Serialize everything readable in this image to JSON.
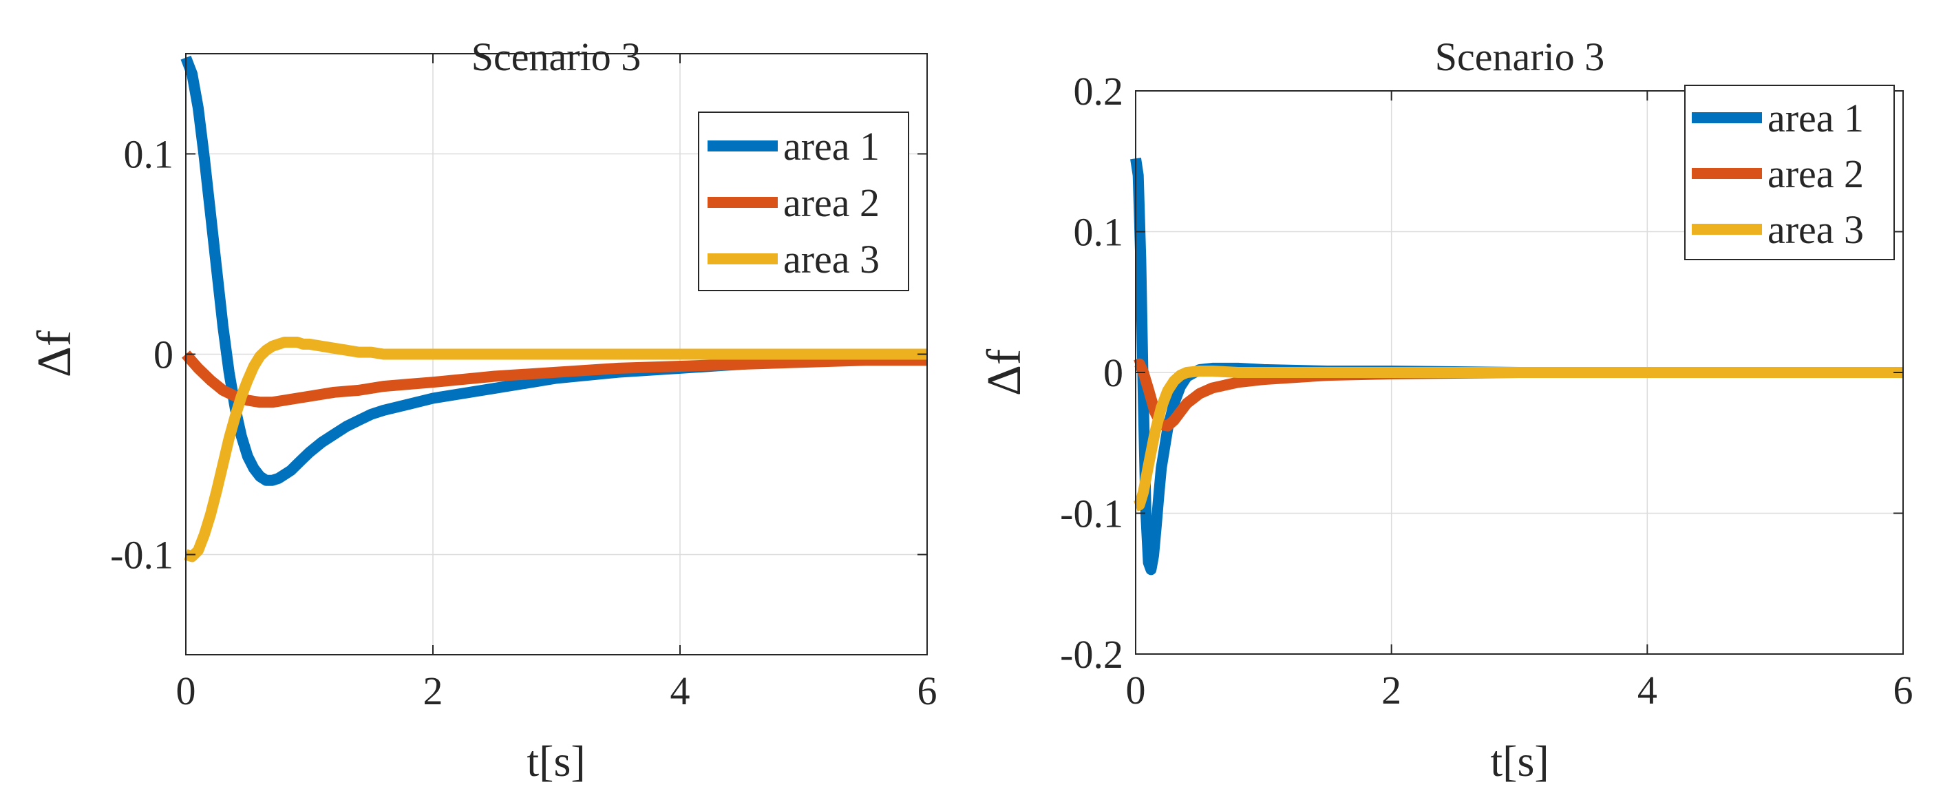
{
  "chart_data": [
    {
      "type": "line",
      "title": "Scenario 3",
      "xlabel": "t[s]",
      "ylabel": "Δf",
      "xlim": [
        0,
        6
      ],
      "ylim": [
        -0.15,
        0.15
      ],
      "xticks": [
        0,
        2,
        4,
        6
      ],
      "xtick_labels": [
        "0",
        "2",
        "4",
        "6"
      ],
      "yticks": [
        -0.1,
        0,
        0.1
      ],
      "ytick_labels": [
        "-0.1",
        "0",
        "0.1"
      ],
      "grid": true,
      "legend_position": "top-right",
      "series": [
        {
          "name": "area 1",
          "color": "#0072BD",
          "x": [
            0,
            0.05,
            0.1,
            0.15,
            0.2,
            0.25,
            0.3,
            0.35,
            0.4,
            0.45,
            0.5,
            0.55,
            0.6,
            0.65,
            0.7,
            0.75,
            0.8,
            0.85,
            0.9,
            0.95,
            1.0,
            1.1,
            1.2,
            1.3,
            1.4,
            1.5,
            1.6,
            1.8,
            2.0,
            2.5,
            3.0,
            3.5,
            4.0,
            4.5,
            5.0,
            5.5,
            6.0
          ],
          "values": [
            0.148,
            0.14,
            0.123,
            0.098,
            0.07,
            0.042,
            0.014,
            -0.009,
            -0.027,
            -0.041,
            -0.051,
            -0.057,
            -0.061,
            -0.063,
            -0.063,
            -0.062,
            -0.06,
            -0.058,
            -0.055,
            -0.052,
            -0.049,
            -0.044,
            -0.04,
            -0.036,
            -0.033,
            -0.03,
            -0.028,
            -0.025,
            -0.022,
            -0.017,
            -0.012,
            -0.009,
            -0.007,
            -0.005,
            -0.003,
            -0.002,
            -0.001
          ]
        },
        {
          "name": "area 2",
          "color": "#D95319",
          "x": [
            0,
            0.1,
            0.2,
            0.3,
            0.4,
            0.5,
            0.6,
            0.7,
            0.8,
            0.9,
            1.0,
            1.2,
            1.4,
            1.6,
            1.8,
            2.0,
            2.5,
            3.0,
            3.5,
            4.0,
            4.5,
            5.0,
            5.5,
            6.0
          ],
          "values": [
            0,
            -0.007,
            -0.013,
            -0.018,
            -0.021,
            -0.023,
            -0.024,
            -0.024,
            -0.023,
            -0.022,
            -0.021,
            -0.019,
            -0.018,
            -0.016,
            -0.015,
            -0.014,
            -0.011,
            -0.009,
            -0.007,
            -0.006,
            -0.005,
            -0.004,
            -0.003,
            -0.003
          ]
        },
        {
          "name": "area 3",
          "color": "#EDB120",
          "x": [
            0,
            0.05,
            0.1,
            0.15,
            0.2,
            0.25,
            0.3,
            0.35,
            0.4,
            0.45,
            0.5,
            0.55,
            0.6,
            0.65,
            0.7,
            0.75,
            0.8,
            0.85,
            0.9,
            0.95,
            1.0,
            1.1,
            1.2,
            1.3,
            1.4,
            1.5,
            1.6,
            1.8,
            2.0,
            2.5,
            3.0,
            4.0,
            5.0,
            6.0
          ],
          "values": [
            -0.1,
            -0.101,
            -0.098,
            -0.09,
            -0.08,
            -0.068,
            -0.055,
            -0.042,
            -0.031,
            -0.021,
            -0.013,
            -0.006,
            -0.001,
            0.002,
            0.004,
            0.005,
            0.006,
            0.006,
            0.006,
            0.005,
            0.005,
            0.004,
            0.003,
            0.002,
            0.001,
            0.001,
            0.0,
            0.0,
            0.0,
            0.0,
            0.0,
            0.0,
            0.0,
            0.0
          ]
        }
      ]
    },
    {
      "type": "line",
      "title": "Scenario 3",
      "xlabel": "t[s]",
      "ylabel": "Δf",
      "xlim": [
        0,
        6
      ],
      "ylim": [
        -0.2,
        0.2
      ],
      "xticks": [
        0,
        2,
        4,
        6
      ],
      "xtick_labels": [
        "0",
        "2",
        "4",
        "6"
      ],
      "yticks": [
        -0.2,
        -0.1,
        0,
        0.1,
        0.2
      ],
      "ytick_labels": [
        "-0.2",
        "-0.1",
        "0",
        "0.1",
        "0.2"
      ],
      "grid": true,
      "legend_position": "top-right",
      "series": [
        {
          "name": "area 1",
          "color": "#0072BD",
          "x": [
            0,
            0.02,
            0.04,
            0.06,
            0.08,
            0.1,
            0.12,
            0.14,
            0.16,
            0.18,
            0.2,
            0.25,
            0.3,
            0.35,
            0.4,
            0.5,
            0.6,
            0.7,
            0.8,
            1.0,
            1.5,
            2.0,
            3.0,
            4.0,
            5.0,
            6.0
          ],
          "values": [
            0.152,
            0.14,
            0.08,
            -0.02,
            -0.1,
            -0.135,
            -0.14,
            -0.13,
            -0.11,
            -0.088,
            -0.068,
            -0.04,
            -0.022,
            -0.01,
            -0.003,
            0.002,
            0.003,
            0.003,
            0.003,
            0.002,
            0.001,
            0.001,
            0.0,
            0.0,
            0.0,
            0.0
          ]
        },
        {
          "name": "area 2",
          "color": "#D95319",
          "x": [
            0,
            0.03,
            0.06,
            0.1,
            0.15,
            0.2,
            0.25,
            0.3,
            0.35,
            0.4,
            0.5,
            0.6,
            0.8,
            1.0,
            1.5,
            2.0,
            3.0,
            4.0,
            5.0,
            6.0
          ],
          "values": [
            0.005,
            0.006,
            0.0,
            -0.012,
            -0.028,
            -0.037,
            -0.038,
            -0.034,
            -0.028,
            -0.022,
            -0.015,
            -0.011,
            -0.007,
            -0.005,
            -0.002,
            -0.001,
            0.0,
            0.0,
            0.0,
            0.0
          ]
        },
        {
          "name": "area 3",
          "color": "#EDB120",
          "x": [
            0,
            0.03,
            0.06,
            0.1,
            0.15,
            0.2,
            0.25,
            0.3,
            0.35,
            0.4,
            0.5,
            0.6,
            0.8,
            1.0,
            1.5,
            2.0,
            3.0,
            4.0,
            5.0,
            6.0
          ],
          "values": [
            -0.095,
            -0.094,
            -0.085,
            -0.066,
            -0.043,
            -0.025,
            -0.013,
            -0.006,
            -0.002,
            0.0,
            0.001,
            0.001,
            0.0,
            0.0,
            0.0,
            0.0,
            0.0,
            0.0,
            0.0,
            0.0
          ]
        }
      ]
    }
  ]
}
